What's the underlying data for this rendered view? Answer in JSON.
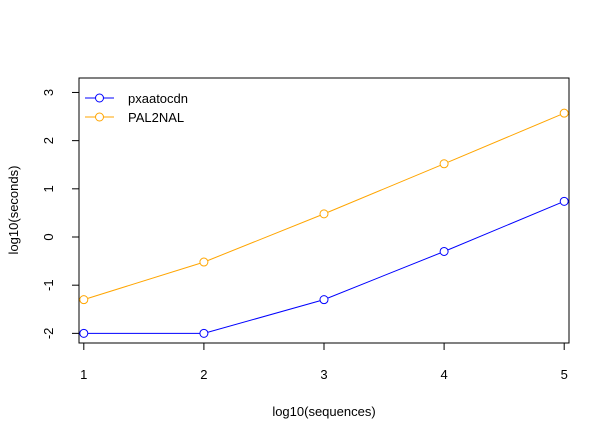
{
  "chart_data": {
    "type": "line",
    "title": "",
    "xlabel": "log10(sequences)",
    "ylabel": "log10(seconds)",
    "x": [
      1,
      2,
      3,
      4,
      5
    ],
    "xlim": [
      0.96,
      5.04
    ],
    "ylim": [
      -2.2,
      3.3
    ],
    "x_ticks": [
      "1",
      "2",
      "3",
      "4",
      "5"
    ],
    "y_ticks": [
      "-2",
      "-1",
      "0",
      "1",
      "2",
      "3"
    ],
    "grid": false,
    "legend_position": "top-left",
    "marker": "open-circle",
    "series": [
      {
        "name": "pxaatocdn",
        "color": "#0000ff",
        "values": [
          -2.0,
          -2.0,
          -1.3,
          -0.3,
          0.74
        ]
      },
      {
        "name": "PAL2NAL",
        "color": "#ffa500",
        "values": [
          -1.3,
          -0.52,
          0.48,
          1.52,
          2.57
        ]
      }
    ]
  }
}
